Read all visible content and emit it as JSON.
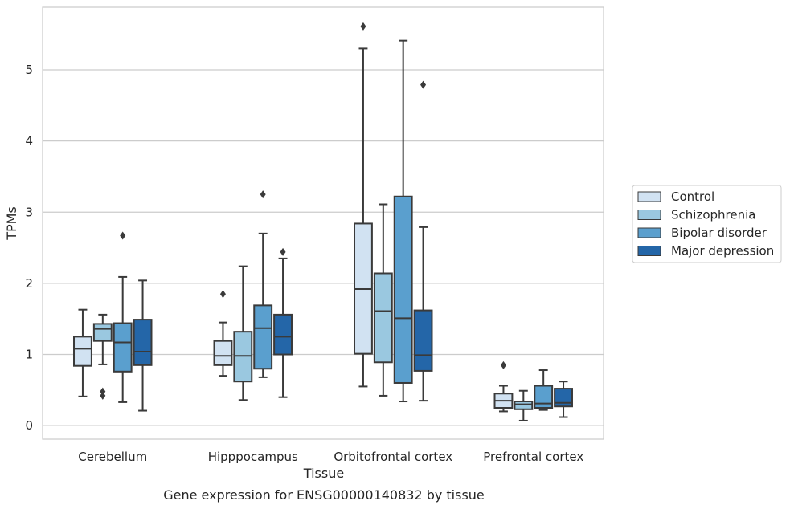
{
  "chart_data": {
    "type": "box",
    "title": "",
    "caption": "Gene expression for ENSG00000140832 by tissue",
    "xlabel": "Tissue",
    "ylabel": "TPMs",
    "ylim": [
      -0.19,
      5.88
    ],
    "yticks": [
      "0",
      "1",
      "2",
      "3",
      "4",
      "5"
    ],
    "grid": "horizontal",
    "legend_position": "right",
    "categories": [
      "Cerebellum",
      "Hipppocampus",
      "Orbitofrontal cortex",
      "Prefrontal cortex"
    ],
    "series": [
      {
        "name": "Control",
        "color": "#d1e2f2",
        "boxes": [
          {
            "q1": 0.84,
            "median": 1.08,
            "q3": 1.25,
            "whisker_low": 0.41,
            "whisker_high": 1.63,
            "outliers": []
          },
          {
            "q1": 0.85,
            "median": 0.98,
            "q3": 1.19,
            "whisker_low": 0.7,
            "whisker_high": 1.45,
            "outliers": [
              1.85
            ]
          },
          {
            "q1": 1.01,
            "median": 1.92,
            "q3": 2.84,
            "whisker_low": 0.55,
            "whisker_high": 5.3,
            "outliers": [
              5.61
            ]
          },
          {
            "q1": 0.25,
            "median": 0.35,
            "q3": 0.45,
            "whisker_low": 0.2,
            "whisker_high": 0.56,
            "outliers": [
              0.85
            ]
          }
        ]
      },
      {
        "name": "Schizophrenia",
        "color": "#9ac8e0",
        "boxes": [
          {
            "q1": 1.19,
            "median": 1.36,
            "q3": 1.43,
            "whisker_low": 0.86,
            "whisker_high": 1.56,
            "outliers": [
              0.42,
              0.48
            ]
          },
          {
            "q1": 0.62,
            "median": 0.98,
            "q3": 1.32,
            "whisker_low": 0.36,
            "whisker_high": 2.24,
            "outliers": []
          },
          {
            "q1": 0.89,
            "median": 1.61,
            "q3": 2.14,
            "whisker_low": 0.42,
            "whisker_high": 3.11,
            "outliers": []
          },
          {
            "q1": 0.23,
            "median": 0.3,
            "q3": 0.34,
            "whisker_low": 0.07,
            "whisker_high": 0.49,
            "outliers": []
          }
        ]
      },
      {
        "name": "Bipolar disorder",
        "color": "#5a9fce",
        "boxes": [
          {
            "q1": 0.76,
            "median": 1.17,
            "q3": 1.44,
            "whisker_low": 0.33,
            "whisker_high": 2.09,
            "outliers": [
              2.67
            ]
          },
          {
            "q1": 0.8,
            "median": 1.37,
            "q3": 1.69,
            "whisker_low": 0.68,
            "whisker_high": 2.7,
            "outliers": [
              3.25
            ]
          },
          {
            "q1": 0.6,
            "median": 1.51,
            "q3": 3.22,
            "whisker_low": 0.34,
            "whisker_high": 5.41,
            "outliers": []
          },
          {
            "q1": 0.25,
            "median": 0.31,
            "q3": 0.56,
            "whisker_low": 0.22,
            "whisker_high": 0.78,
            "outliers": []
          }
        ]
      },
      {
        "name": "Major depression",
        "color": "#2466a8",
        "boxes": [
          {
            "q1": 0.85,
            "median": 1.04,
            "q3": 1.49,
            "whisker_low": 0.21,
            "whisker_high": 2.04,
            "outliers": []
          },
          {
            "q1": 1.0,
            "median": 1.25,
            "q3": 1.56,
            "whisker_low": 0.4,
            "whisker_high": 2.35,
            "outliers": [
              2.44
            ]
          },
          {
            "q1": 0.77,
            "median": 0.99,
            "q3": 1.62,
            "whisker_low": 0.35,
            "whisker_high": 2.79,
            "outliers": [
              4.79
            ]
          },
          {
            "q1": 0.27,
            "median": 0.32,
            "q3": 0.52,
            "whisker_low": 0.12,
            "whisker_high": 0.62,
            "outliers": []
          }
        ]
      }
    ]
  }
}
